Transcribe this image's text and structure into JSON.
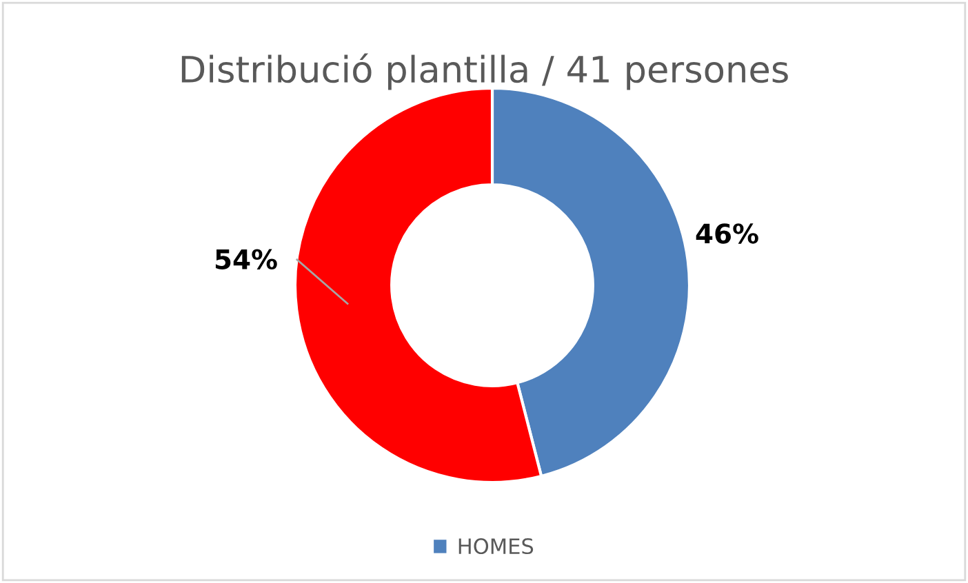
{
  "chart_data": {
    "type": "donut",
    "title": "Distribució plantilla / 41 persones",
    "categories": [
      "HOMES",
      null
    ],
    "values": [
      46,
      54
    ],
    "colors": [
      "#4f81bd",
      "#ff0000"
    ],
    "value_labels": [
      "46%",
      "54%"
    ],
    "legend": "bottom"
  }
}
